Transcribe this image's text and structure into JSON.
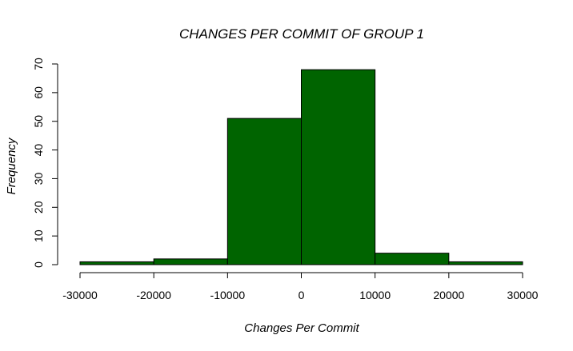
{
  "chart_data": {
    "type": "bar",
    "histogram": true,
    "title": "CHANGES PER COMMIT OF GROUP 1",
    "xlabel": "Changes Per Commit",
    "ylabel": "Frequency",
    "bins": [
      {
        "start": -30000,
        "end": -20000,
        "value": 1
      },
      {
        "start": -20000,
        "end": -10000,
        "value": 2
      },
      {
        "start": -10000,
        "end": 0,
        "value": 51
      },
      {
        "start": 0,
        "end": 10000,
        "value": 68
      },
      {
        "start": 10000,
        "end": 20000,
        "value": 4
      },
      {
        "start": 20000,
        "end": 30000,
        "value": 1
      }
    ],
    "xlim": [
      -30000,
      30000
    ],
    "ylim": [
      0,
      70
    ],
    "xticks": [
      -30000,
      -20000,
      -10000,
      0,
      10000,
      20000,
      30000
    ],
    "xtick_labels": [
      "-30000",
      "-20000",
      "-10000",
      "0",
      "10000",
      "20000",
      "30000"
    ],
    "yticks": [
      0,
      10,
      20,
      30,
      40,
      50,
      60,
      70
    ],
    "ytick_labels": [
      "0",
      "10",
      "20",
      "30",
      "40",
      "50",
      "60",
      "70"
    ],
    "bar_color": "#006400",
    "grid": false,
    "legend": false
  }
}
